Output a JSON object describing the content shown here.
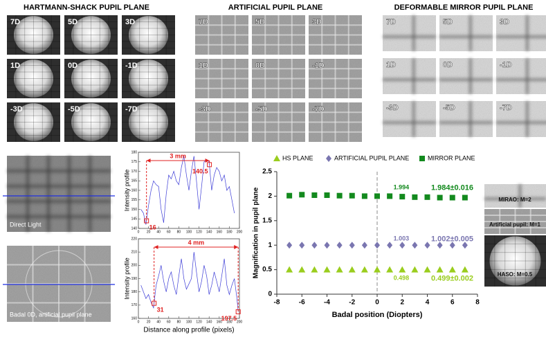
{
  "panels": [
    {
      "title": "HARTMANN-SHACK PUPIL PLANE",
      "tiles": [
        "7D",
        "5D",
        "3D",
        "1D",
        "0D",
        "-1D",
        "-3D",
        "-5D",
        "-7D"
      ]
    },
    {
      "title": "ARTIFICIAL PUPIL PLANE",
      "tiles": [
        "7D",
        "5D",
        "3D",
        "1D",
        "0D",
        "-1D",
        "-3D",
        "-5D",
        "-7D"
      ]
    },
    {
      "title": "DEFORMABLE MIRROR PUPIL PLANE",
      "tiles": [
        "7D",
        "5D",
        "3D",
        "1D",
        "0D",
        "-1D",
        "-3D",
        "-5D",
        "-7D"
      ]
    }
  ],
  "images": [
    "Direct Light",
    "Badal 0D, artificial pupil plane"
  ],
  "side": [
    "MIRAO: M=2",
    "Artificial pupil: M=1",
    "HASO: M=0.5"
  ],
  "chart_data": [
    {
      "type": "line",
      "ylabel": "Intensity profile",
      "color": "#3b3bd6",
      "x": [
        5,
        10,
        15,
        20,
        25,
        30,
        35,
        40,
        45,
        50,
        55,
        60,
        65,
        70,
        75,
        80,
        85,
        90,
        95,
        100,
        105,
        110,
        115,
        120,
        125,
        130,
        135,
        140,
        145,
        150,
        155,
        160,
        165,
        170,
        175,
        180,
        185,
        190
      ],
      "values": [
        150,
        148,
        142,
        152,
        160,
        165,
        163,
        162,
        150,
        143,
        158,
        168,
        166,
        170,
        165,
        163,
        172,
        178,
        168,
        160,
        170,
        178,
        165,
        150,
        162,
        175,
        176,
        175,
        160,
        168,
        172,
        170,
        165,
        168,
        160,
        162,
        155,
        148
      ],
      "xlim": [
        0,
        200
      ],
      "ylim": [
        140,
        180
      ],
      "xticks": [
        0,
        20,
        40,
        60,
        80,
        100,
        120,
        140,
        160,
        180,
        200
      ],
      "yticks": [
        140,
        145,
        150,
        155,
        160,
        165,
        170,
        175,
        180
      ],
      "markers": [
        16,
        140.5
      ],
      "span_label": "3 mm"
    },
    {
      "type": "line",
      "ylabel": "Intensity profile",
      "xlabel": "Distance along profile (pixels)",
      "color": "#3b3bd6",
      "x": [
        5,
        10,
        15,
        20,
        25,
        30,
        35,
        40,
        45,
        50,
        55,
        60,
        65,
        70,
        75,
        80,
        85,
        90,
        95,
        100,
        105,
        110,
        115,
        120,
        125,
        130,
        135,
        140,
        145,
        150,
        155,
        160,
        165,
        170,
        175,
        180,
        185,
        190,
        195,
        197.5
      ],
      "values": [
        185,
        180,
        175,
        178,
        172,
        168,
        185,
        192,
        200,
        188,
        180,
        190,
        195,
        185,
        178,
        192,
        205,
        190,
        182,
        186,
        190,
        210,
        195,
        180,
        188,
        200,
        192,
        178,
        185,
        195,
        188,
        180,
        192,
        205,
        185,
        178,
        185,
        190,
        175,
        165
      ],
      "xlim": [
        0,
        200
      ],
      "ylim": [
        160,
        220
      ],
      "xticks": [
        0,
        20,
        40,
        60,
        80,
        100,
        120,
        140,
        160,
        180,
        200
      ],
      "yticks": [
        160,
        170,
        180,
        190,
        200,
        210,
        220
      ],
      "markers": [
        31,
        197.5
      ],
      "span_label": "4 mm"
    },
    {
      "type": "scatter",
      "xlabel": "Badal position (Diopters)",
      "ylabel": "Magnification in pupil plane",
      "x": [
        -7,
        -6,
        -5,
        -4,
        -3,
        -2,
        -1,
        0,
        1,
        2,
        3,
        4,
        5,
        6,
        7
      ],
      "series": [
        {
          "name": "HS PLANE",
          "color": "#9acd1e",
          "marker": "triangle",
          "values": [
            0.5,
            0.5,
            0.5,
            0.5,
            0.5,
            0.5,
            0.5,
            0.5,
            0.5,
            0.5,
            0.5,
            0.5,
            0.5,
            0.5,
            0.5
          ]
        },
        {
          "name": "ARTIFICIAL PUPIL PLANE",
          "color": "#7a76b0",
          "marker": "diamond",
          "values": [
            1.0,
            1.0,
            1.0,
            1.0,
            1.0,
            1.0,
            1.0,
            1.0,
            1.0,
            1.0,
            1.0,
            1.0,
            1.0,
            1.0,
            1.0
          ]
        },
        {
          "name": "MIRROR PLANE",
          "color": "#138a1e",
          "marker": "square",
          "values": [
            2.01,
            2.03,
            2.02,
            2.02,
            2.01,
            2.01,
            2.0,
            2.0,
            2.0,
            1.99,
            1.98,
            1.98,
            1.97,
            1.97,
            1.97
          ]
        }
      ],
      "xlim": [
        -8,
        8
      ],
      "ylim": [
        0,
        2.5
      ],
      "xticks": [
        -8,
        -6,
        -4,
        -2,
        0,
        2,
        4,
        6,
        8
      ],
      "yticks": [
        0,
        0.5,
        1,
        1.5,
        2,
        2.5
      ],
      "reference_x": 0,
      "annotations": [
        "1.994",
        "1.984±0.016",
        "1.003",
        "1.002±0.005",
        "0.498",
        "0.499±0.002"
      ]
    }
  ]
}
